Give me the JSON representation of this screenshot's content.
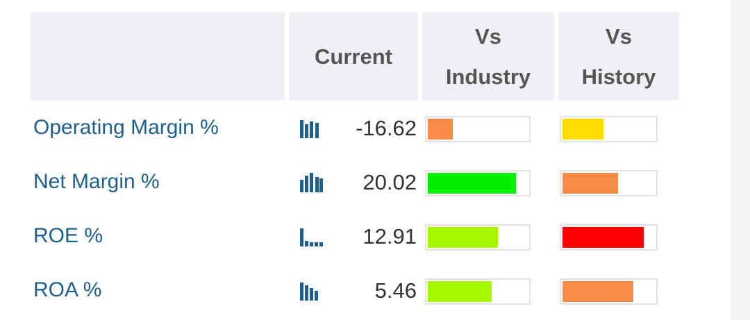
{
  "table": {
    "headers": {
      "current": "Current",
      "vs_industry": "Vs Industry",
      "vs_history": "Vs History"
    },
    "rows": [
      {
        "label": "Operating Margin %",
        "current": -16.62,
        "vs_industry": {
          "value": 25,
          "color": "#f78c47"
        },
        "vs_history": {
          "value": 44,
          "color": "#ffdd00"
        }
      },
      {
        "label": "Net Margin %",
        "current": 20.02,
        "vs_industry": {
          "value": 88,
          "color": "#00ee00"
        },
        "vs_history": {
          "value": 60,
          "color": "#f78c47"
        }
      },
      {
        "label": "ROE %",
        "current": 12.91,
        "vs_industry": {
          "value": 70,
          "color": "#a8f500"
        },
        "vs_history": {
          "value": 88,
          "color": "#ff0000"
        }
      },
      {
        "label": "ROA %",
        "current": 5.46,
        "vs_industry": {
          "value": 64,
          "color": "#a8f500"
        },
        "vs_history": {
          "value": 77,
          "color": "#f78c47"
        }
      }
    ]
  }
}
